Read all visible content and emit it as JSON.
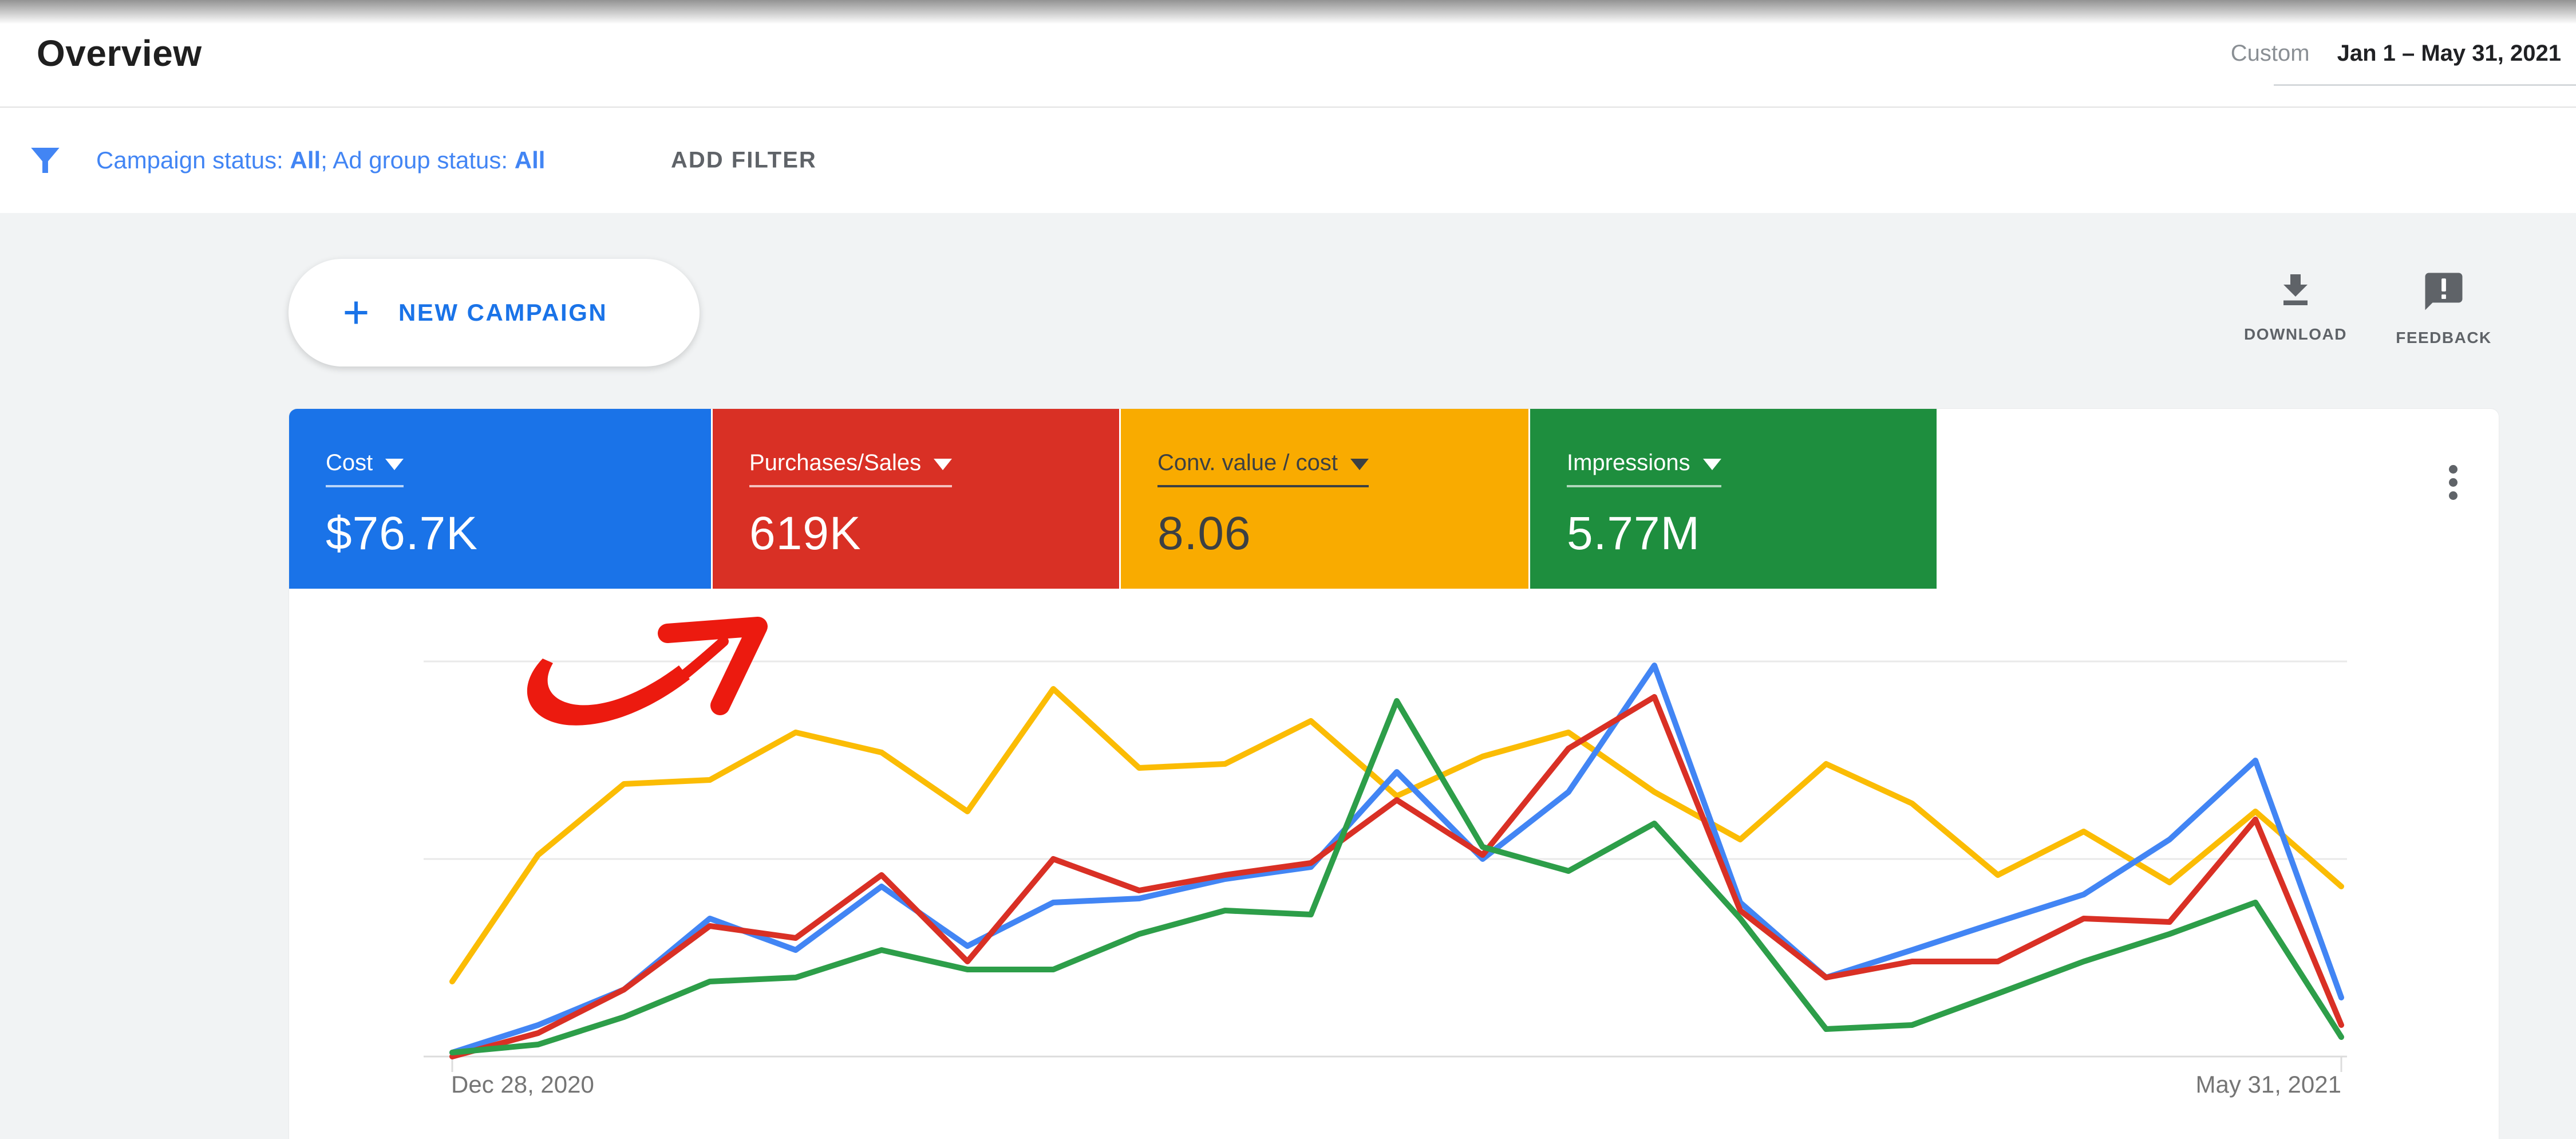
{
  "header": {
    "title": "Overview",
    "date_range_type": "Custom",
    "date_range_value": "Jan 1 – May 31, 2021"
  },
  "filter_bar": {
    "campaign_prefix": "Campaign status: ",
    "campaign_value": "All",
    "adgroup_prefix": "; Ad group status: ",
    "adgroup_value": "All",
    "add_filter_label": "ADD FILTER"
  },
  "toolbar": {
    "new_campaign_label": "NEW CAMPAIGN",
    "download_label": "DOWNLOAD",
    "feedback_label": "FEEDBACK"
  },
  "icons": {
    "filter": "funnel-icon",
    "plus": "plus-icon",
    "download": "download-arrow-icon",
    "feedback": "speech-bubble-exclamation-icon",
    "kebab": "kebab-menu-icon",
    "caret": "caret-down-icon"
  },
  "scorecards": [
    {
      "label": "Cost",
      "value": "$76.7K",
      "bg": "#1a73e8",
      "fg": "#ffffff",
      "underline": "rgba(255,255,255,0.70)"
    },
    {
      "label": "Purchases/Sales",
      "value": "619K",
      "bg": "#d93025",
      "fg": "#ffffff",
      "underline": "rgba(255,255,255,0.70)"
    },
    {
      "label": "Conv. value / cost",
      "value": "8.06",
      "bg": "#f9ab00",
      "fg": "#3c4043",
      "underline": "#3c4043"
    },
    {
      "label": "Impressions",
      "value": "5.77M",
      "bg": "#1e8e3e",
      "fg": "#ffffff",
      "underline": "rgba(255,255,255,0.65)"
    }
  ],
  "chart_data": {
    "type": "line",
    "title": "Overview performance chart (normalized, weekly points)",
    "x_start_label": "Dec 28, 2020",
    "x_end_label": "May 31, 2021",
    "x_unit": "week",
    "x_points": 23,
    "ylim": [
      0,
      105
    ],
    "y_axis_labels": "hidden (values normalized 0-100, 100 = top gridline)",
    "grid": "2 light horizontal gridlines + baseline with end ticks",
    "legend_position": "none (series colors match scorecards)",
    "series_draw_order": [
      2,
      0,
      1,
      3
    ],
    "series": [
      {
        "name": "Cost",
        "color": "#4285f4",
        "values": [
          1,
          8,
          17,
          35,
          27,
          43,
          28,
          39,
          40,
          45,
          48,
          72,
          50,
          67,
          99,
          39,
          20,
          27,
          34,
          41,
          55,
          75,
          15
        ]
      },
      {
        "name": "Purchases/Sales",
        "color": "#d93025",
        "values": [
          0,
          6,
          17,
          33,
          30,
          46,
          24,
          50,
          42,
          46,
          49,
          65,
          51,
          78,
          91,
          37,
          20,
          24,
          24,
          35,
          34,
          60,
          8
        ]
      },
      {
        "name": "Conv. value / cost",
        "color": "#fbbc04",
        "values": [
          19,
          51,
          69,
          70,
          82,
          77,
          62,
          93,
          73,
          74,
          85,
          66,
          76,
          82,
          67,
          55,
          74,
          64,
          46,
          57,
          44,
          62,
          43
        ]
      },
      {
        "name": "Impressions",
        "color": "#2d9e49",
        "values": [
          1,
          3,
          10,
          19,
          20,
          27,
          22,
          22,
          31,
          37,
          36,
          90,
          53,
          47,
          59,
          35,
          7,
          8,
          16,
          24,
          31,
          39,
          5
        ]
      }
    ],
    "annotation": "hand-drawn red arrow pointing up-right at the Purchases/Sales scorecard",
    "annotation_color": "#ec1a0f"
  }
}
